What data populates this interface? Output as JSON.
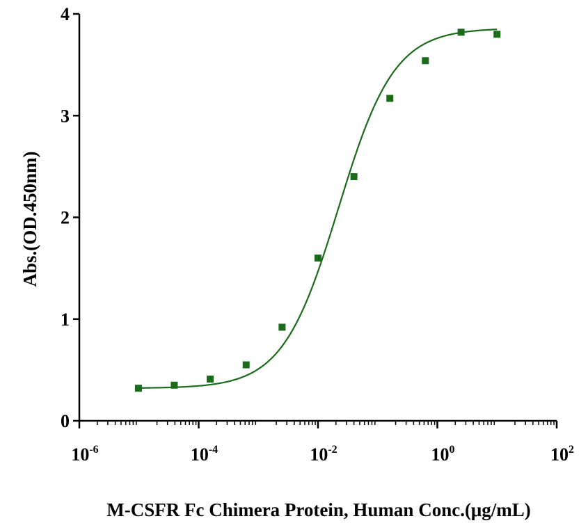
{
  "chart_data": {
    "type": "scatter",
    "title": "",
    "xlabel": "M-CSFR Fc Chimera Protein, Human Conc.(μg/mL)",
    "ylabel": "Abs.(OD.450nm)",
    "x_scale": "log",
    "xlim": [
      1e-06,
      100
    ],
    "ylim": [
      0,
      4
    ],
    "x_ticks": [
      {
        "value": 1e-06,
        "base": "10",
        "exp": "-6"
      },
      {
        "value": 0.0001,
        "base": "10",
        "exp": "-4"
      },
      {
        "value": 0.01,
        "base": "10",
        "exp": "-2"
      },
      {
        "value": 1,
        "base": "10",
        "exp": "0"
      },
      {
        "value": 100,
        "base": "10",
        "exp": "2"
      }
    ],
    "y_ticks": [
      "0",
      "1",
      "2",
      "3",
      "4"
    ],
    "grid": false,
    "series": [
      {
        "color": "#1a6b1a",
        "x": [
          9.8e-06,
          3.9e-05,
          0.000156,
          0.000625,
          0.0025,
          0.01,
          0.04,
          0.16,
          0.63,
          2.5,
          10
        ],
        "y": [
          0.32,
          0.35,
          0.41,
          0.55,
          0.92,
          1.6,
          2.4,
          3.17,
          3.54,
          3.82,
          3.8
        ],
        "fit": {
          "model": "4PL",
          "bottom": 0.32,
          "top": 3.86,
          "ec50": 0.022,
          "hill": 0.93
        }
      }
    ]
  }
}
